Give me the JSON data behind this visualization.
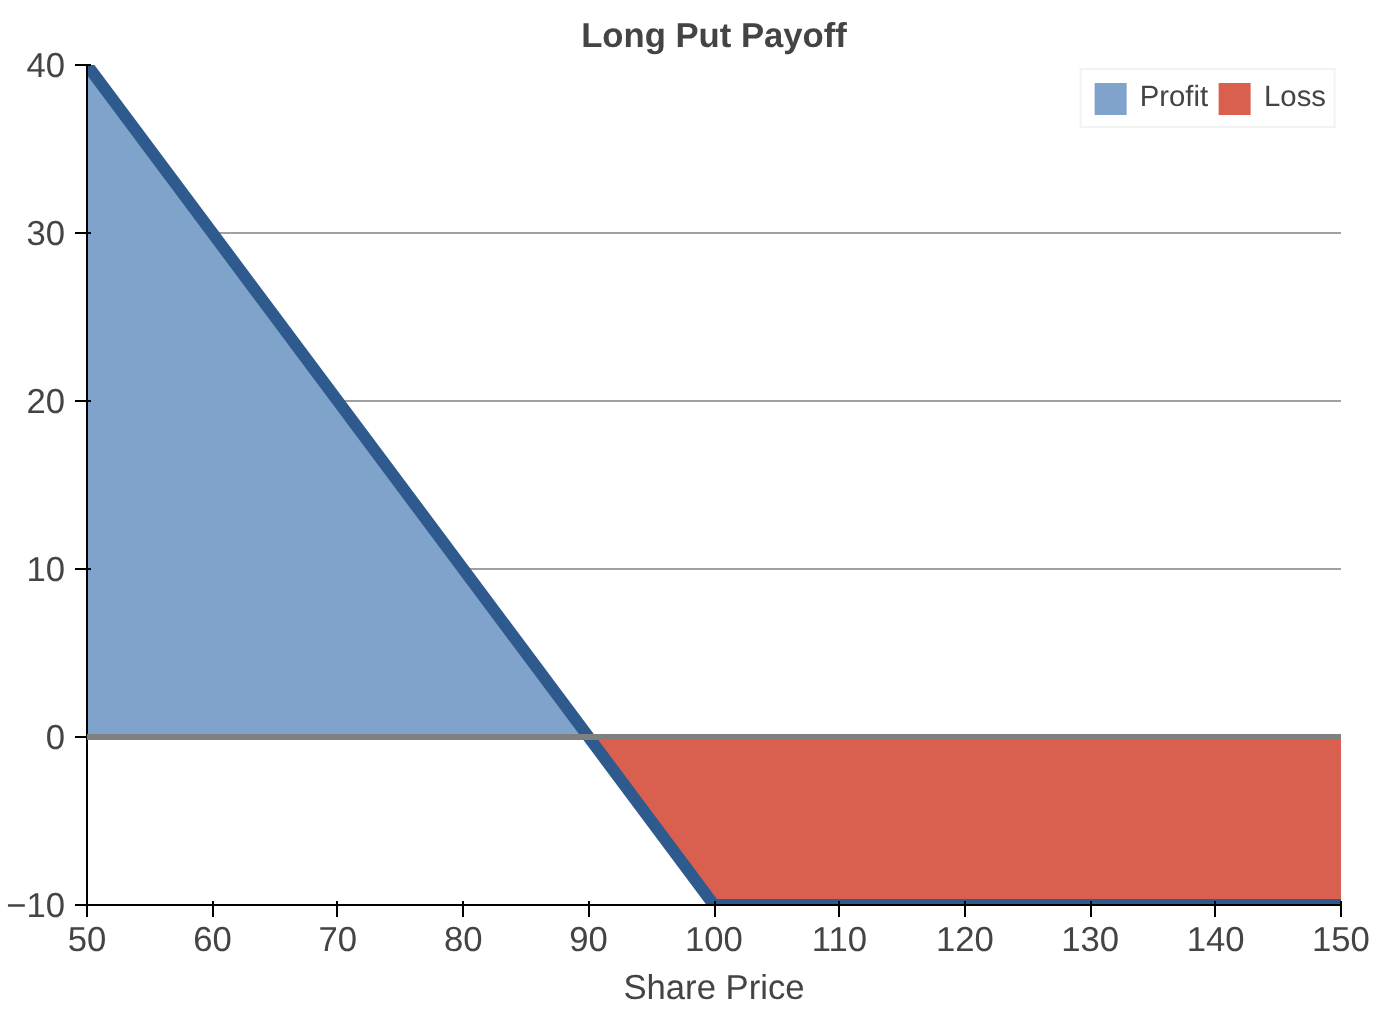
{
  "chart_data": {
    "type": "area",
    "title": "Long Put Payoff",
    "xlabel": "Share Price",
    "series": [
      {
        "name": "Profit",
        "color": "#7fa3cb",
        "x": [
          50,
          90
        ],
        "values": [
          40,
          0
        ]
      },
      {
        "name": "Loss",
        "color": "#d9604f",
        "x": [
          90,
          100,
          150
        ],
        "values": [
          0,
          -10,
          -10
        ]
      },
      {
        "type": "line",
        "color": "#2e5a8e",
        "x": [
          50,
          90,
          100,
          150
        ],
        "values": [
          40,
          0,
          -10,
          -10
        ]
      }
    ],
    "xlim": [
      50,
      150
    ],
    "xticks": [
      50,
      60,
      70,
      80,
      90,
      100,
      110,
      120,
      130,
      140,
      150
    ],
    "ylim": [
      -10,
      40
    ],
    "yticks": [
      {
        "value": -10,
        "label": "−10"
      },
      0,
      10,
      20,
      30,
      40
    ],
    "ref_lines": [
      {
        "axis": "y",
        "value": 0,
        "color": "#808080"
      }
    ],
    "grid": "y",
    "legend": "top right"
  }
}
